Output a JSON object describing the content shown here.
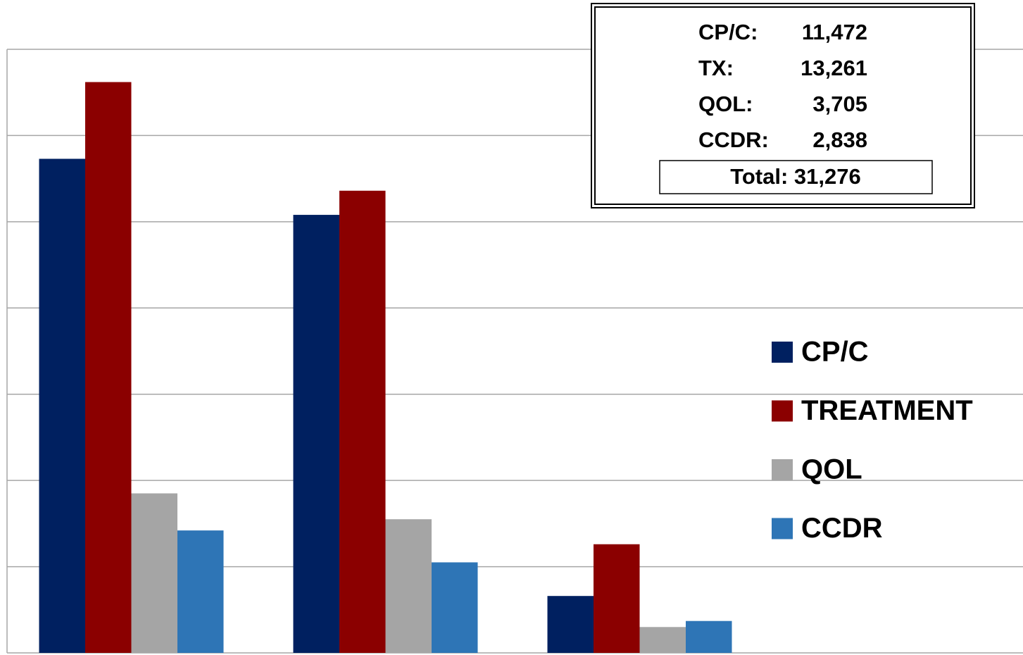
{
  "chart_data": {
    "type": "bar",
    "categories": [
      null,
      null,
      null
    ],
    "series": [
      {
        "name": "CP/C",
        "color": "#002060",
        "values": [
          5730,
          5080,
          660
        ]
      },
      {
        "name": "TREATMENT",
        "color": "#8b0000",
        "values": [
          6620,
          5360,
          1260
        ]
      },
      {
        "name": "QOL",
        "color": "#a5a5a5",
        "values": [
          1850,
          1550,
          300
        ]
      },
      {
        "name": "CCDR",
        "color": "#2e75b6",
        "values": [
          1420,
          1050,
          370
        ]
      }
    ],
    "ylim": [
      0,
      7000
    ],
    "yticks": [
      0,
      1000,
      2000,
      3000,
      4000,
      5000,
      6000,
      7000
    ],
    "grid": true,
    "legend": "right",
    "annotation": {
      "lines": [
        {
          "label": "CP/C:",
          "value": "11,472"
        },
        {
          "label": "TX:",
          "value": "13,261"
        },
        {
          "label": "QOL:",
          "value": "3,705"
        },
        {
          "label": "CCDR:",
          "value": "2,838"
        }
      ],
      "total": "Total: 31,276"
    }
  }
}
